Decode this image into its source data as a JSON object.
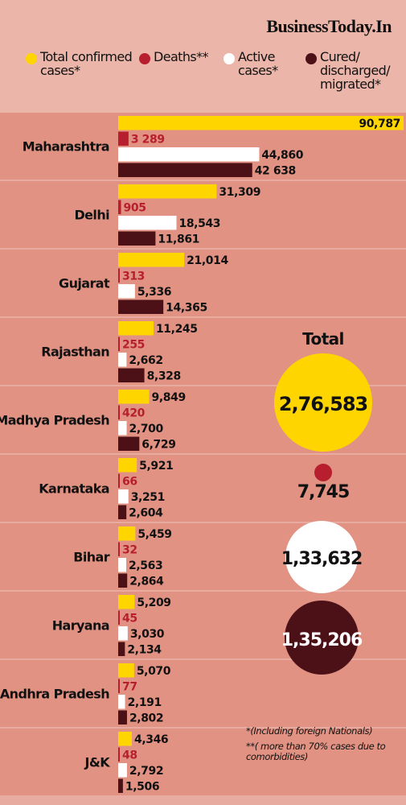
{
  "brand": "BusinessToday.In",
  "colors": {
    "confirmed": "#ffd500",
    "deaths": "#b81f2e",
    "active": "#ffffff",
    "cured": "#4c1117",
    "row_bg": "#e19282",
    "header_bg": "#ebb6a9"
  },
  "legend": [
    {
      "label": "Total confirmed\ncases*",
      "color": "#ffd500"
    },
    {
      "label": "Deaths**",
      "color": "#b81f2e"
    },
    {
      "label": "Active\ncases*",
      "color": "#ffffff"
    },
    {
      "label": "Cured/\ndischarged/\nmigrated*",
      "color": "#4c1117"
    }
  ],
  "chart_data": {
    "type": "bar",
    "orientation": "horizontal",
    "categories": [
      "Maharashtra",
      "Delhi",
      "Gujarat",
      "Rajasthan",
      "Madhya Pradesh",
      "Karnataka",
      "Bihar",
      "Haryana",
      "Andhra Pradesh",
      "J&K"
    ],
    "series": [
      {
        "name": "Total confirmed cases*",
        "color": "#ffd500",
        "values": [
          90787,
          31309,
          21014,
          11245,
          9849,
          5921,
          5459,
          5209,
          5070,
          4346
        ],
        "labels": [
          "90,787",
          "31,309",
          "21,014",
          "11,245",
          "9,849",
          "5,921",
          "5,459",
          "5,209",
          "5,070",
          "4,346"
        ]
      },
      {
        "name": "Deaths**",
        "color": "#b81f2e",
        "values": [
          3289,
          905,
          313,
          255,
          420,
          66,
          32,
          45,
          77,
          48
        ],
        "labels": [
          "3 289",
          "905",
          "313",
          "255",
          "420",
          "66",
          "32",
          "45",
          "77",
          "48"
        ]
      },
      {
        "name": "Active cases*",
        "color": "#ffffff",
        "values": [
          44860,
          18543,
          5336,
          2662,
          2700,
          3251,
          2563,
          3030,
          2191,
          2792
        ],
        "labels": [
          "44,860",
          "18,543",
          "5,336",
          "2,662",
          "2,700",
          "3,251",
          "2,563",
          "3,030",
          "2,191",
          "2,792"
        ]
      },
      {
        "name": "Cured/discharged/migrated*",
        "color": "#4c1117",
        "values": [
          42638,
          11861,
          14365,
          8328,
          6729,
          2604,
          2864,
          2134,
          2802,
          1506
        ],
        "labels": [
          "42 638",
          "11,861",
          "14,365",
          "8,328",
          "6,729",
          "2,604",
          "2,864",
          "2,134",
          "2,802",
          "1,506"
        ]
      }
    ]
  },
  "totals": {
    "title": "Total",
    "items": [
      {
        "label": "2,76,583",
        "value": 276583,
        "color": "#ffd500",
        "text_color": "#111111"
      },
      {
        "label": "7,745",
        "value": 7745,
        "color": "#b81f2e",
        "text_color": "#111111"
      },
      {
        "label": "1,33,632",
        "value": 133632,
        "color": "#ffffff",
        "text_color": "#111111"
      },
      {
        "label": "1,35,206",
        "value": 135206,
        "color": "#4c1117",
        "text_color": "#ffffff"
      }
    ]
  },
  "footnotes": [
    "*(Including foreign Nationals)",
    "**( more than 70% cases due to comorbidities)"
  ]
}
